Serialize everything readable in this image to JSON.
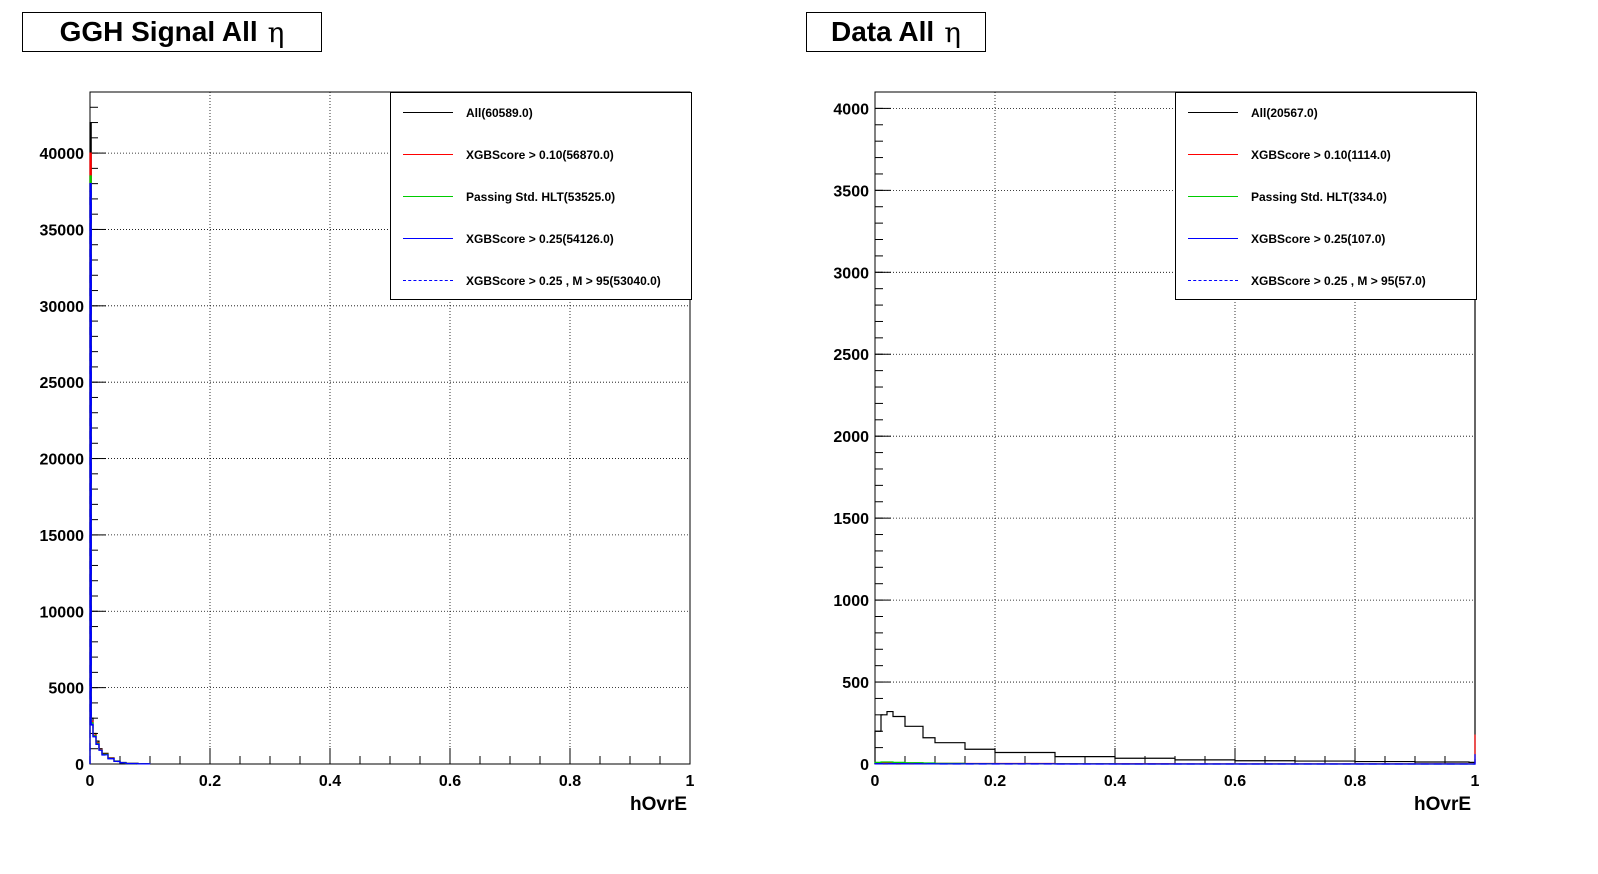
{
  "panels": [
    {
      "title": "GGH Signal All",
      "title_symbol": "η",
      "x_axis_title": "hOvrE",
      "legend": [
        {
          "label": "All(60589.0)",
          "color": "#000000",
          "dashed": false
        },
        {
          "label": "XGBScore > 0.10(56870.0)",
          "color": "#ff0000",
          "dashed": false
        },
        {
          "label": "Passing Std. HLT(53525.0)",
          "color": "#00cc00",
          "dashed": false
        },
        {
          "label": "XGBScore > 0.25(54126.0)",
          "color": "#0000ff",
          "dashed": false
        },
        {
          "label": "XGBScore > 0.25 , M > 95(53040.0)",
          "color": "#0000ff",
          "dashed": true
        }
      ]
    },
    {
      "title": "Data All",
      "title_symbol": "η",
      "x_axis_title": "hOvrE",
      "legend": [
        {
          "label": "All(20567.0)",
          "color": "#000000",
          "dashed": false
        },
        {
          "label": "XGBScore > 0.10(1114.0)",
          "color": "#ff0000",
          "dashed": false
        },
        {
          "label": "Passing Std. HLT(334.0)",
          "color": "#00cc00",
          "dashed": false
        },
        {
          "label": "XGBScore > 0.25(107.0)",
          "color": "#0000ff",
          "dashed": false
        },
        {
          "label": "XGBScore > 0.25 , M > 95(57.0)",
          "color": "#0000ff",
          "dashed": true
        }
      ]
    }
  ],
  "chart_data": [
    {
      "type": "line",
      "title": "GGH Signal All η",
      "xlabel": "hOvrE",
      "ylabel": "",
      "xlim": [
        0,
        1
      ],
      "ylim": [
        0,
        44000
      ],
      "grid": true,
      "legend_position": "top-right",
      "x_ticks": [
        "0",
        "0.2",
        "0.4",
        "0.6",
        "0.8",
        "1"
      ],
      "y_ticks": [
        "0",
        "5000",
        "10000",
        "15000",
        "20000",
        "25000",
        "30000",
        "35000",
        "40000"
      ],
      "x": [
        0.0,
        0.002,
        0.005,
        0.01,
        0.015,
        0.02,
        0.03,
        0.04,
        0.05,
        0.06,
        0.08,
        0.1
      ],
      "series": [
        {
          "name": "All(60589.0)",
          "color": "#000000",
          "values": [
            42000,
            3000,
            2000,
            1500,
            1000,
            700,
            400,
            200,
            100,
            40,
            10,
            0
          ]
        },
        {
          "name": "XGBScore > 0.10(56870.0)",
          "color": "#ff0000",
          "values": [
            40000,
            2800,
            1900,
            1400,
            950,
            650,
            380,
            190,
            95,
            38,
            9,
            0
          ]
        },
        {
          "name": "Passing Std. HLT(53525.0)",
          "color": "#00cc00",
          "values": [
            38500,
            2700,
            1850,
            1350,
            920,
            630,
            360,
            180,
            90,
            35,
            8,
            0
          ]
        },
        {
          "name": "XGBScore > 0.25(54126.0)",
          "color": "#0000ff",
          "values": [
            38000,
            2600,
            1800,
            1300,
            900,
            600,
            350,
            170,
            85,
            33,
            8,
            0
          ]
        },
        {
          "name": "XGBScore > 0.25 , M > 95(53040.0)",
          "color": "#0000ff",
          "dashed": true,
          "values": [
            37500,
            2550,
            1780,
            1280,
            880,
            590,
            340,
            165,
            80,
            30,
            7,
            0
          ]
        }
      ]
    },
    {
      "type": "line",
      "title": "Data All η",
      "xlabel": "hOvrE",
      "ylabel": "",
      "xlim": [
        0,
        1
      ],
      "ylim": [
        0,
        4100
      ],
      "grid": true,
      "legend_position": "top-right",
      "x_ticks": [
        "0",
        "0.2",
        "0.4",
        "0.6",
        "0.8",
        "1"
      ],
      "y_ticks": [
        "0",
        "500",
        "1000",
        "1500",
        "2000",
        "2500",
        "3000",
        "3500",
        "4000"
      ],
      "x": [
        0.0,
        0.01,
        0.02,
        0.03,
        0.05,
        0.08,
        0.1,
        0.15,
        0.2,
        0.3,
        0.4,
        0.5,
        0.6,
        0.7,
        0.8,
        0.9,
        0.99,
        1.0
      ],
      "series": [
        {
          "name": "All(20567.0)",
          "color": "#000000",
          "values": [
            200,
            300,
            320,
            290,
            230,
            160,
            130,
            90,
            70,
            45,
            35,
            25,
            20,
            18,
            15,
            12,
            10,
            3300
          ]
        },
        {
          "name": "XGBScore > 0.10(1114.0)",
          "color": "#ff0000",
          "values": [
            5,
            8,
            8,
            7,
            6,
            5,
            4,
            3,
            3,
            2,
            2,
            1,
            1,
            1,
            1,
            1,
            1,
            180
          ]
        },
        {
          "name": "Passing Std. HLT(334.0)",
          "color": "#00cc00",
          "values": [
            10,
            12,
            12,
            10,
            8,
            6,
            4,
            2,
            1,
            1,
            0,
            0,
            0,
            0,
            0,
            0,
            0,
            0
          ]
        },
        {
          "name": "XGBScore > 0.25(107.0)",
          "color": "#0000ff",
          "values": [
            2,
            2,
            2,
            2,
            1,
            1,
            1,
            1,
            1,
            0,
            0,
            0,
            0,
            0,
            0,
            0,
            0,
            60
          ]
        },
        {
          "name": "XGBScore > 0.25 , M > 95(57.0)",
          "color": "#0000ff",
          "dashed": true,
          "values": [
            1,
            1,
            1,
            1,
            1,
            1,
            0,
            0,
            0,
            0,
            0,
            0,
            0,
            0,
            0,
            0,
            0,
            30
          ]
        }
      ]
    }
  ]
}
